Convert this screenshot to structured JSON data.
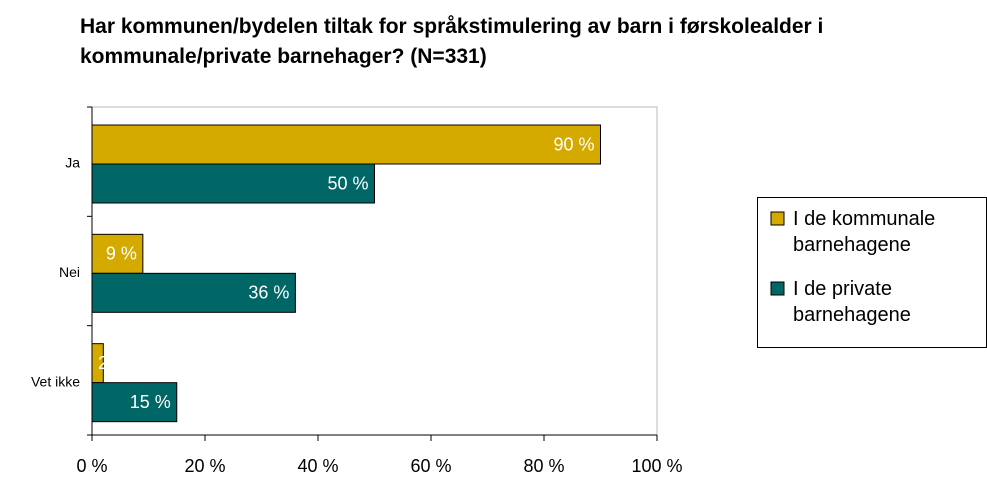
{
  "chart_data": {
    "type": "bar",
    "orientation": "horizontal",
    "title": "Har kommunen/bydelen tiltak for språkstimulering av barn i førskolealder i kommunale/private barnehager? (N=331)",
    "categories": [
      "Ja",
      "Nei",
      "Vet ikke"
    ],
    "series": [
      {
        "name": "I de kommunale barnehagene",
        "color": "#d4aa00",
        "values": [
          90,
          9,
          2
        ],
        "value_labels": [
          "90 %",
          "9 %",
          "2"
        ]
      },
      {
        "name": "I de private barnehagene",
        "color": "#006666",
        "values": [
          50,
          36,
          15
        ],
        "value_labels": [
          "50 %",
          "36 %",
          "15 %"
        ]
      }
    ],
    "xlim": [
      0,
      100
    ],
    "xticks": [
      {
        "value": 0,
        "label": "0 %"
      },
      {
        "value": 20,
        "label": "20 %"
      },
      {
        "value": 40,
        "label": "40 %"
      },
      {
        "value": 60,
        "label": "60 %"
      },
      {
        "value": 80,
        "label": "80 %"
      },
      {
        "value": 100,
        "label": "100 %"
      }
    ],
    "legend": "right",
    "grid": false
  }
}
